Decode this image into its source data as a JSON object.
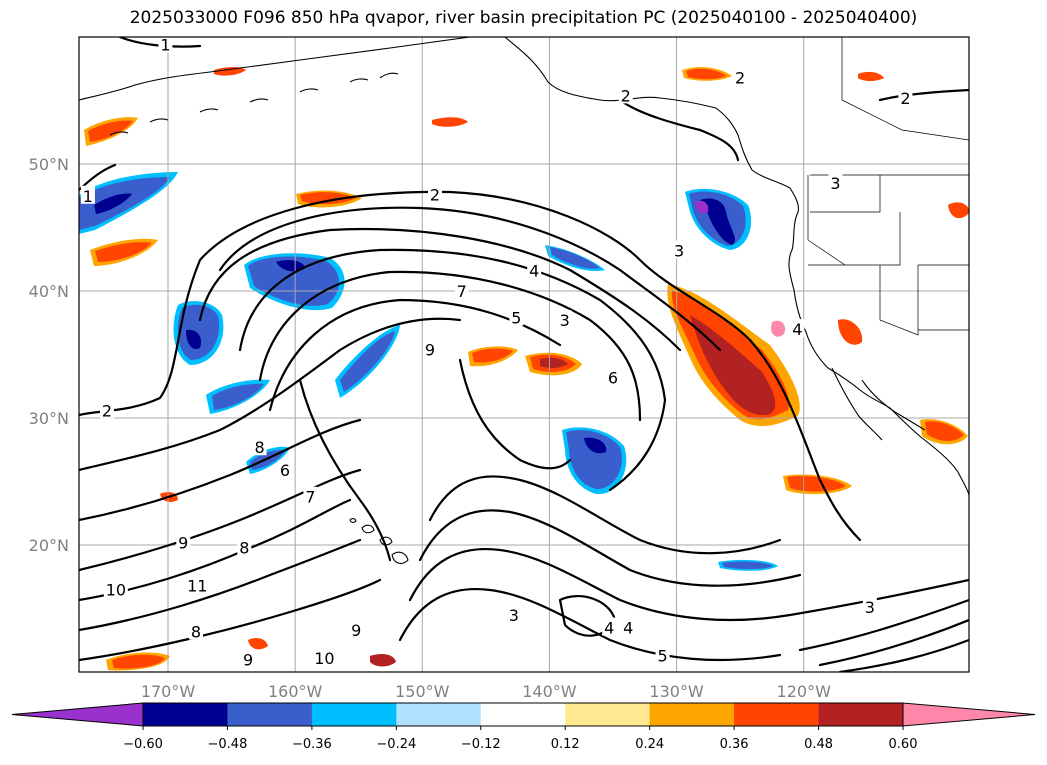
{
  "title": "2025033000 F096 850 hPa qvapor, river basin precipitation PC (2025040100 - 2025040400)",
  "map": {
    "lon_range": [
      -177,
      -107
    ],
    "lat_range": [
      10,
      60
    ],
    "lat_ticks": [
      {
        "value": 20,
        "label": "20°N"
      },
      {
        "value": 30,
        "label": "30°N"
      },
      {
        "value": 40,
        "label": "40°N"
      },
      {
        "value": 50,
        "label": "50°N"
      }
    ],
    "lon_ticks": [
      {
        "value": -170,
        "label": "170°W"
      },
      {
        "value": -160,
        "label": "160°W"
      },
      {
        "value": -150,
        "label": "150°W"
      },
      {
        "value": -140,
        "label": "140°W"
      },
      {
        "value": -130,
        "label": "130°W"
      },
      {
        "value": -120,
        "label": "120°W"
      }
    ],
    "gridlines": true,
    "contour_field": "850 hPa qvapor",
    "contour_labels": [
      {
        "text": "1",
        "lon": -170.2,
        "lat": 59.4
      },
      {
        "text": "1",
        "lon": -176.3,
        "lat": 47.5
      },
      {
        "text": "2",
        "lon": -174.8,
        "lat": 30.6
      },
      {
        "text": "2",
        "lon": -149.0,
        "lat": 47.6
      },
      {
        "text": "2",
        "lon": -125.0,
        "lat": 56.8
      },
      {
        "text": "2",
        "lon": -112.0,
        "lat": 55.2
      },
      {
        "text": "2",
        "lon": -134.0,
        "lat": 55.4
      },
      {
        "text": "3",
        "lon": -129.8,
        "lat": 43.2
      },
      {
        "text": "3",
        "lon": -117.5,
        "lat": 48.5
      },
      {
        "text": "3",
        "lon": -138.8,
        "lat": 37.7
      },
      {
        "text": "3",
        "lon": -142.8,
        "lat": 14.5
      },
      {
        "text": "3",
        "lon": -114.8,
        "lat": 15.1
      },
      {
        "text": "4",
        "lon": -141.2,
        "lat": 41.6
      },
      {
        "text": "4",
        "lon": -120.5,
        "lat": 37.0
      },
      {
        "text": "4",
        "lon": -135.3,
        "lat": 13.5
      },
      {
        "text": "4",
        "lon": -133.8,
        "lat": 13.5
      },
      {
        "text": "5",
        "lon": -142.6,
        "lat": 37.9
      },
      {
        "text": "5",
        "lon": -131.1,
        "lat": 11.3
      },
      {
        "text": "6",
        "lon": -135.0,
        "lat": 33.2
      },
      {
        "text": "6",
        "lon": -160.8,
        "lat": 25.9
      },
      {
        "text": "7",
        "lon": -146.9,
        "lat": 40.0
      },
      {
        "text": "7",
        "lon": -158.8,
        "lat": 23.8
      },
      {
        "text": "8",
        "lon": -162.8,
        "lat": 27.7
      },
      {
        "text": "8",
        "lon": -164.0,
        "lat": 19.8
      },
      {
        "text": "8",
        "lon": -167.8,
        "lat": 13.2
      },
      {
        "text": "9",
        "lon": -149.4,
        "lat": 35.4
      },
      {
        "text": "9",
        "lon": -168.8,
        "lat": 20.2
      },
      {
        "text": "9",
        "lon": -155.2,
        "lat": 13.3
      },
      {
        "text": "9",
        "lon": -163.7,
        "lat": 11.0
      },
      {
        "text": "10",
        "lon": -174.1,
        "lat": 16.5
      },
      {
        "text": "10",
        "lon": -157.7,
        "lat": 11.1
      },
      {
        "text": "11",
        "lon": -167.7,
        "lat": 16.8
      }
    ]
  },
  "colorbar": {
    "extend": "both",
    "ticks": [
      "−0.60",
      "−0.48",
      "−0.36",
      "−0.24",
      "−0.12",
      "0.12",
      "0.24",
      "0.36",
      "0.48",
      "0.60"
    ],
    "colors": [
      "#9932cc",
      "#000090",
      "#3a5fcd",
      "#00bfff",
      "#b0e2ff",
      "#ffffff",
      "#ffe990",
      "#ffa500",
      "#ff4500",
      "#b22222",
      "#ff88aa"
    ]
  }
}
